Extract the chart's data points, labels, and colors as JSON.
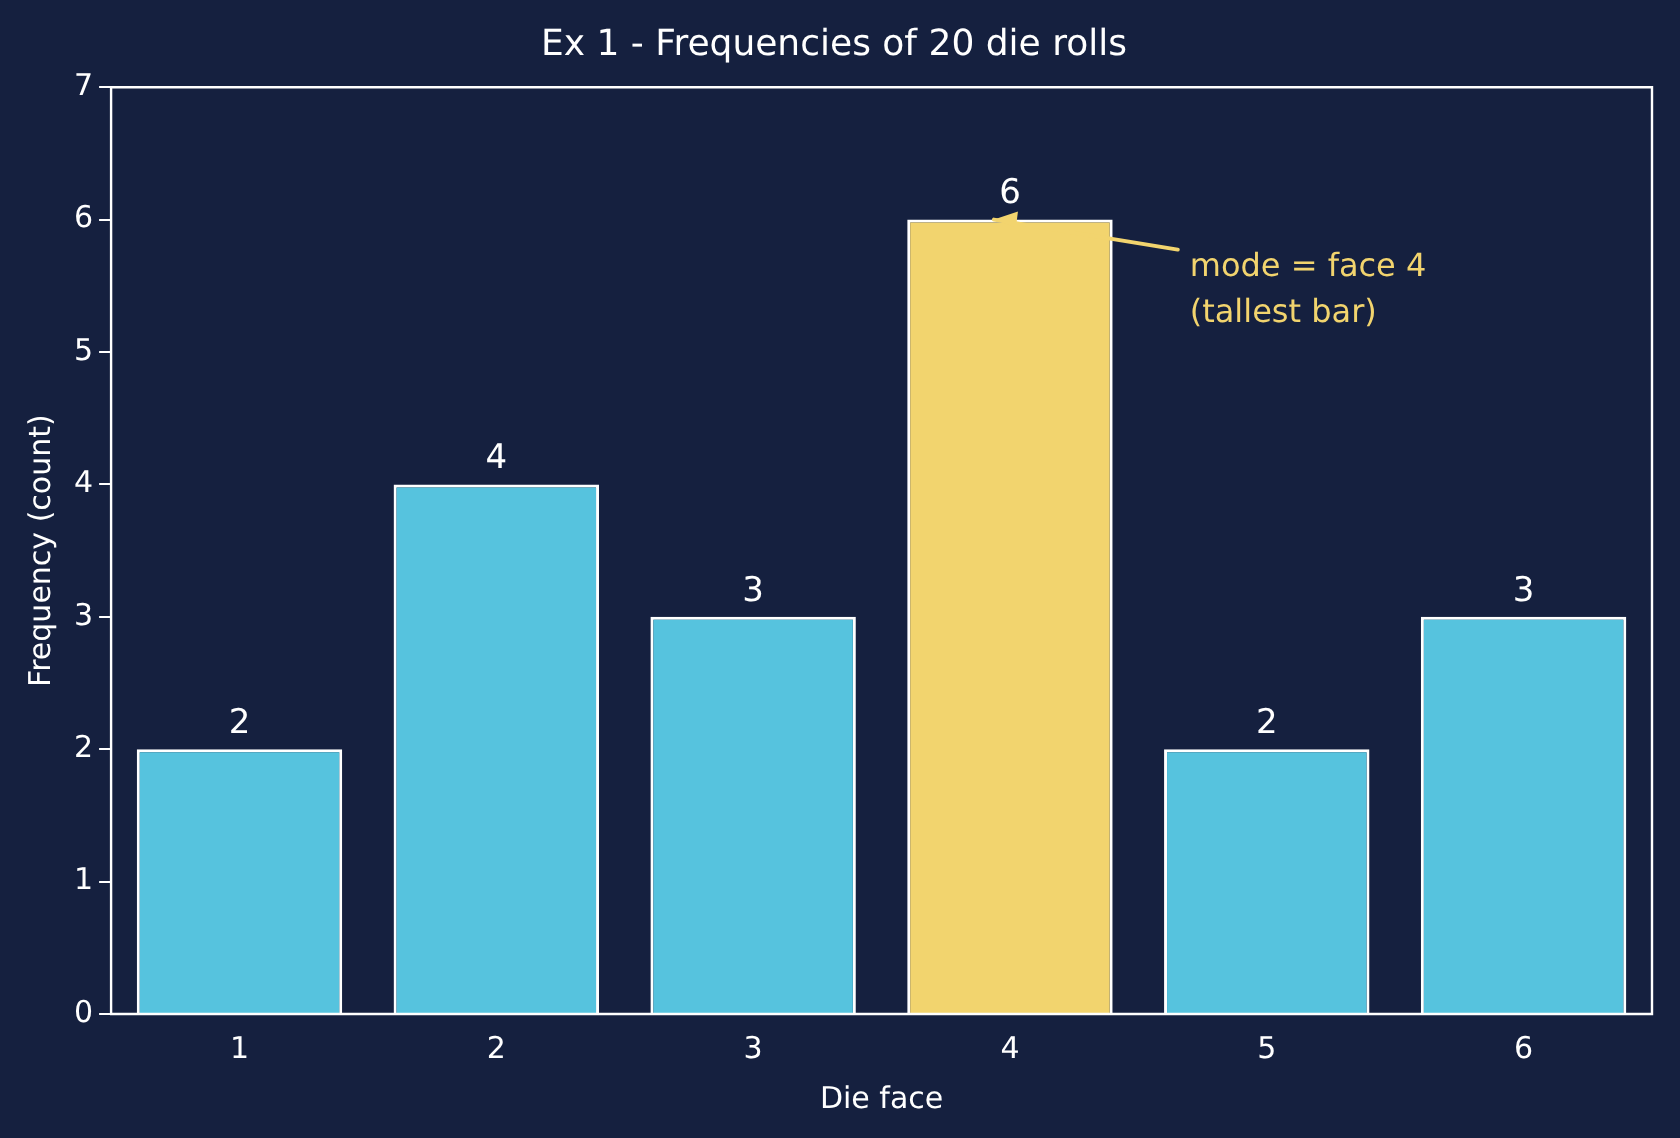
{
  "chart_data": {
    "type": "bar",
    "title": "Ex 1 - Frequencies of 20 die rolls",
    "xlabel": "Die face",
    "ylabel": "Frequency (count)",
    "categories": [
      "1",
      "2",
      "3",
      "4",
      "5",
      "6"
    ],
    "values": [
      2,
      4,
      3,
      6,
      2,
      3
    ],
    "colors": [
      "#56c3de",
      "#56c3de",
      "#56c3de",
      "#f2d46e",
      "#56c3de",
      "#56c3de"
    ],
    "ylim": [
      0,
      7
    ],
    "yticks": [
      0,
      1,
      2,
      3,
      4,
      5,
      6,
      7
    ],
    "grid": false,
    "legend": false,
    "data_labels": true,
    "annotations": [
      {
        "text": "mode = face 4\n(tallest bar)",
        "x": "4",
        "y": 6
      }
    ]
  }
}
